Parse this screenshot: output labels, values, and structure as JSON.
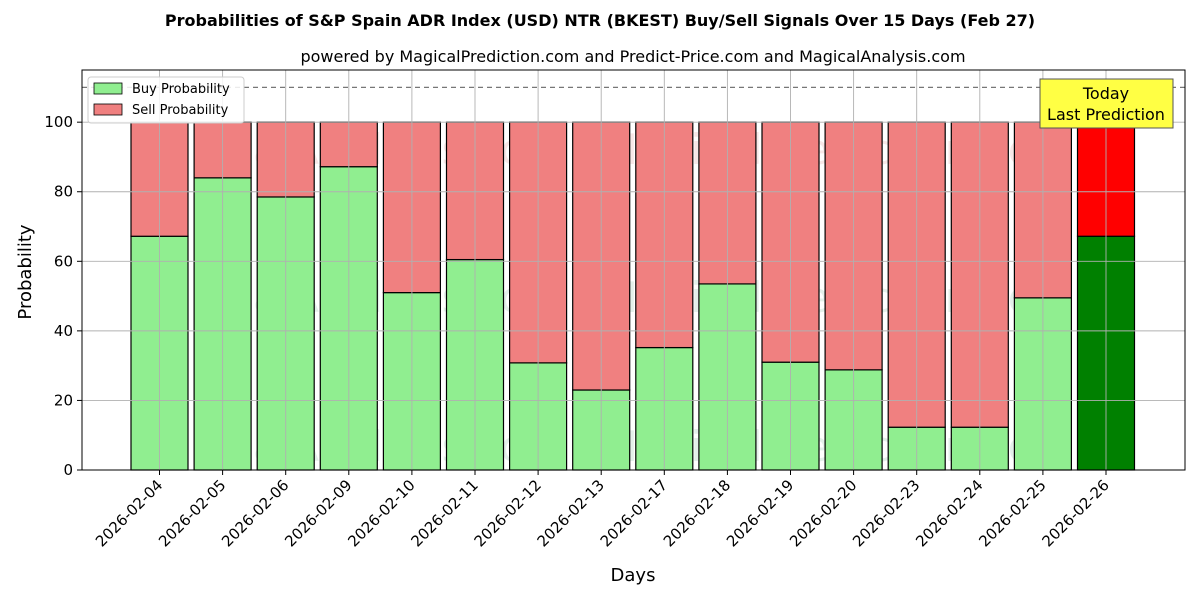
{
  "chart_data": {
    "type": "bar",
    "stacked": true,
    "title": "Probabilities of S&P Spain ADR Index (USD) NTR (BKEST) Buy/Sell Signals Over 15 Days (Feb 27)",
    "subtitle": "powered by MagicalPrediction.com and Predict-Price.com and MagicalAnalysis.com",
    "xlabel": "Days",
    "ylabel": "Probability",
    "ylim": [
      0,
      115
    ],
    "yticks": [
      0,
      20,
      40,
      60,
      80,
      100
    ],
    "threshold_line": 110,
    "grid": true,
    "legend_position": "top-left",
    "categories": [
      "2026-02-04",
      "2026-02-05",
      "2026-02-06",
      "2026-02-09",
      "2026-02-10",
      "2026-02-11",
      "2026-02-12",
      "2026-02-13",
      "2026-02-17",
      "2026-02-18",
      "2026-02-19",
      "2026-02-20",
      "2026-02-23",
      "2026-02-24",
      "2026-02-25",
      "2026-02-26"
    ],
    "series": [
      {
        "name": "Buy Probability",
        "color": "#90ee90",
        "values": [
          67.2,
          84.0,
          78.5,
          87.2,
          51.0,
          60.5,
          30.8,
          23.0,
          35.2,
          53.5,
          31.0,
          28.8,
          12.3,
          12.3,
          49.5,
          67.2
        ]
      },
      {
        "name": "Sell Probability",
        "color": "#f08080",
        "values": [
          32.8,
          16.0,
          21.5,
          12.8,
          49.0,
          39.5,
          69.2,
          77.0,
          64.8,
          46.5,
          69.0,
          71.2,
          87.7,
          87.7,
          50.5,
          32.8
        ]
      }
    ],
    "highlight": {
      "index": 15,
      "buy_color": "#008000",
      "sell_color": "#ff0000"
    },
    "annotation": {
      "text_line1": "Today",
      "text_line2": "Last Prediction",
      "color": "#ffff44"
    },
    "watermarks": [
      "MagicalAnalysis.com",
      "MagicalPrediction.com"
    ]
  }
}
